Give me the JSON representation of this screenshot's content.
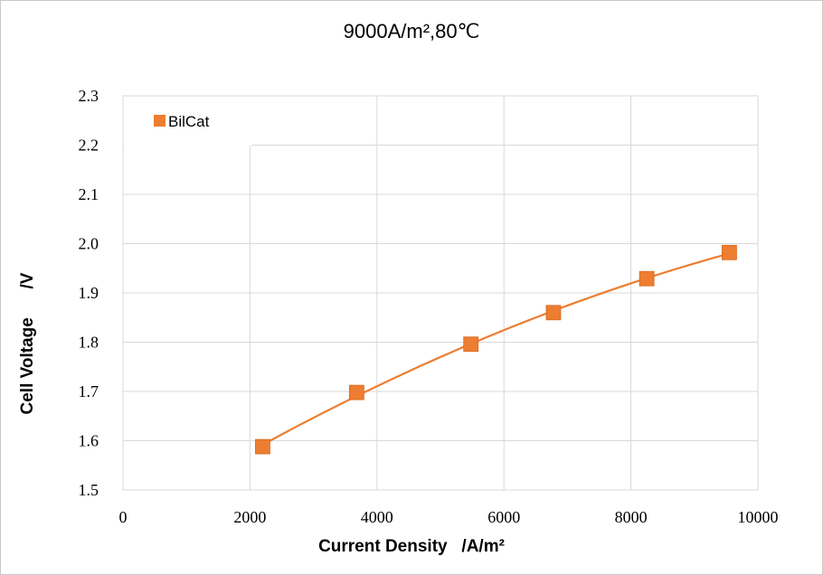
{
  "chart_data": {
    "type": "scatter",
    "title": "9000A/m²,80℃",
    "xlabel": "Current Density   /A/m²",
    "ylabel": "Cell Voltage      /V",
    "xlim": [
      0,
      10000
    ],
    "ylim": [
      1.5,
      2.3
    ],
    "xticks": [
      "0",
      "2000",
      "4000",
      "6000",
      "8000",
      "10000"
    ],
    "yticks": [
      "1.5",
      "1.6",
      "1.7",
      "1.8",
      "1.9",
      "2.0",
      "2.1",
      "2.2",
      "2.3"
    ],
    "grid": true,
    "legend_position": "top-left",
    "series": [
      {
        "name": "BilCat",
        "color": "#ed7d31",
        "marker": "square",
        "trendline": true,
        "x": [
          2200,
          3680,
          5480,
          6780,
          8250,
          9550
        ],
        "y": [
          1.588,
          1.698,
          1.796,
          1.86,
          1.929,
          1.982
        ]
      }
    ]
  }
}
